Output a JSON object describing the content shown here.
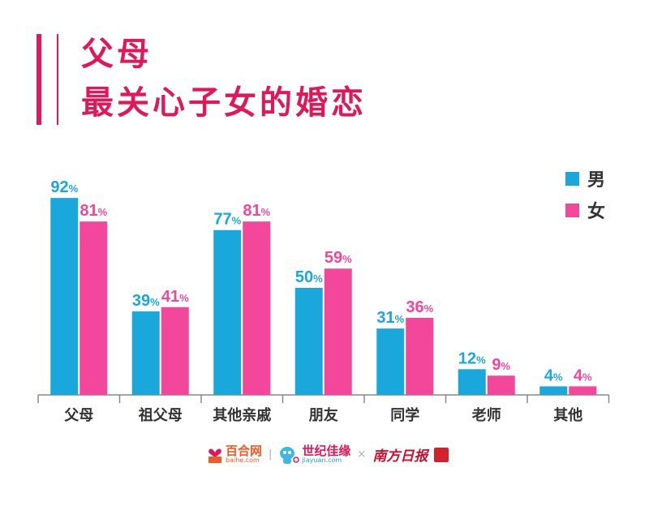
{
  "title_line1": "父母",
  "title_line2": "最关心子女的婚恋",
  "footer": {
    "logo1_cn": "百合网",
    "logo1_en": "baihe.com",
    "logo2_cn": "世纪佳缘",
    "logo2_en": "jiayuan.com",
    "separator": "×",
    "logo3": "南方日报"
  },
  "chart_data": {
    "type": "bar",
    "categories": [
      "父母",
      "祖父母",
      "其他亲戚",
      "朋友",
      "同学",
      "老师",
      "其他"
    ],
    "series": [
      {
        "name": "男",
        "color": "#1aa7dc",
        "values": [
          92,
          39,
          77,
          50,
          31,
          12,
          4
        ]
      },
      {
        "name": "女",
        "color": "#f2479a",
        "values": [
          81,
          41,
          81,
          59,
          36,
          9,
          4
        ]
      }
    ],
    "unit": "%",
    "ylim": [
      0,
      100
    ],
    "grid": false,
    "legend": "top-right"
  }
}
